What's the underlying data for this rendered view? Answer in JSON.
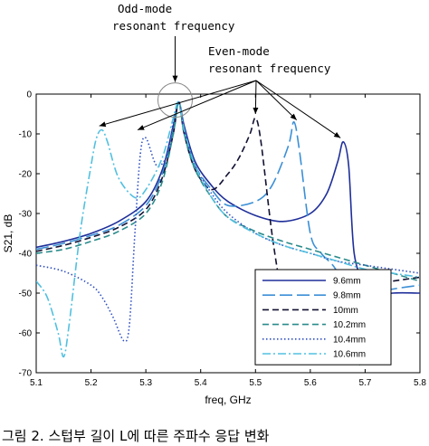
{
  "chart_data": {
    "type": "line",
    "xlabel": "freq, GHz",
    "ylabel": "S21, dB",
    "xlim": [
      5.1,
      5.8
    ],
    "ylim": [
      -70,
      0
    ],
    "xticks": [
      5.1,
      5.2,
      5.3,
      5.4,
      5.5,
      5.6,
      5.7,
      5.8
    ],
    "yticks": [
      0,
      -10,
      -20,
      -30,
      -40,
      -50,
      -60,
      -70
    ],
    "legend_position": "bottom-right",
    "grid": false,
    "series": [
      {
        "name": "9.6mm",
        "color": "#1f2f9a",
        "dash": "solid",
        "x": [
          5.1,
          5.15,
          5.2,
          5.25,
          5.3,
          5.33,
          5.35,
          5.36,
          5.37,
          5.39,
          5.42,
          5.45,
          5.5,
          5.55,
          5.6,
          5.63,
          5.65,
          5.66,
          5.67,
          5.68,
          5.7,
          5.72,
          5.75,
          5.8
        ],
        "y": [
          -38.5,
          -37,
          -35,
          -32,
          -27,
          -19,
          -8,
          -2,
          -8,
          -17,
          -23,
          -27,
          -30.5,
          -32,
          -30,
          -25,
          -17,
          -12,
          -18,
          -40,
          -48,
          -51,
          -50,
          -50
        ]
      },
      {
        "name": "9.8mm",
        "color": "#3b8fd6",
        "dash": "long",
        "x": [
          5.1,
          5.15,
          5.2,
          5.25,
          5.3,
          5.33,
          5.35,
          5.36,
          5.37,
          5.39,
          5.42,
          5.45,
          5.5,
          5.53,
          5.56,
          5.57,
          5.58,
          5.6,
          5.62,
          5.65,
          5.68,
          5.69,
          5.7,
          5.72,
          5.75,
          5.8
        ],
        "y": [
          -39,
          -37.5,
          -35.5,
          -33,
          -28,
          -20,
          -9,
          -2,
          -9,
          -18,
          -24,
          -28,
          -27,
          -23,
          -13,
          -7,
          -14,
          -35,
          -40,
          -45,
          -58,
          -68,
          -58,
          -50,
          -49,
          -48
        ]
      },
      {
        "name": "10mm",
        "color": "#111133",
        "dash": "dash",
        "x": [
          5.1,
          5.15,
          5.2,
          5.25,
          5.3,
          5.33,
          5.35,
          5.36,
          5.37,
          5.39,
          5.42,
          5.45,
          5.47,
          5.49,
          5.5,
          5.51,
          5.53,
          5.55,
          5.57,
          5.58,
          5.6,
          5.65,
          5.7,
          5.75,
          5.8
        ],
        "y": [
          -39.5,
          -38,
          -36,
          -33.5,
          -29,
          -21,
          -10,
          -2,
          -10,
          -19,
          -24,
          -20,
          -16,
          -10,
          -6,
          -12,
          -35,
          -52,
          -63,
          -67,
          -56,
          -49,
          -48,
          -47,
          -46
        ]
      },
      {
        "name": "10.2mm",
        "color": "#2a8a8a",
        "dash": "dash",
        "x": [
          5.1,
          5.15,
          5.2,
          5.25,
          5.3,
          5.33,
          5.35,
          5.36,
          5.37,
          5.39,
          5.42,
          5.45,
          5.5,
          5.55,
          5.6,
          5.65,
          5.7,
          5.75,
          5.8
        ],
        "y": [
          -40,
          -39,
          -37,
          -34.5,
          -30,
          -22,
          -10,
          -2,
          -10,
          -19,
          -26,
          -31,
          -34.5,
          -37,
          -39,
          -41,
          -43,
          -45,
          -47
        ]
      },
      {
        "name": "10.4mm",
        "color": "#2f4fbf",
        "dash": "dot",
        "x": [
          5.1,
          5.15,
          5.2,
          5.22,
          5.24,
          5.26,
          5.27,
          5.28,
          5.29,
          5.3,
          5.32,
          5.34,
          5.35,
          5.36,
          5.37,
          5.39,
          5.42,
          5.45,
          5.5,
          5.55,
          5.6,
          5.65,
          5.7,
          5.75,
          5.8
        ],
        "y": [
          -43,
          -44.5,
          -48,
          -51,
          -56,
          -62,
          -58,
          -35,
          -15,
          -11,
          -18,
          -15,
          -7,
          -2,
          -9,
          -18,
          -25,
          -30,
          -35,
          -38,
          -40,
          -42,
          -43,
          -44,
          -45
        ]
      },
      {
        "name": "10.6mm",
        "color": "#52c0e0",
        "dash": "dashdot",
        "x": [
          5.1,
          5.12,
          5.14,
          5.15,
          5.16,
          5.18,
          5.2,
          5.21,
          5.22,
          5.23,
          5.25,
          5.28,
          5.3,
          5.33,
          5.35,
          5.36,
          5.37,
          5.39,
          5.42,
          5.45,
          5.5,
          5.55,
          5.6,
          5.65,
          5.7,
          5.75,
          5.8
        ],
        "y": [
          -47,
          -51,
          -60,
          -66,
          -58,
          -35,
          -18,
          -11,
          -9,
          -12,
          -21,
          -26,
          -24,
          -16,
          -6,
          -2,
          -9,
          -18,
          -26,
          -31,
          -35,
          -38,
          -40,
          -42,
          -44,
          -45,
          -46
        ]
      }
    ],
    "annotations": [
      {
        "text_lines": [
          "Odd-mode",
          "resonant frequency"
        ]
      },
      {
        "text_lines": [
          "Even-mode",
          "resonant frequency"
        ]
      }
    ],
    "odd_mode_marker": {
      "x": 5.36,
      "y": -1.5
    },
    "even_mode_targets": [
      {
        "x": 5.215,
        "y": -8
      },
      {
        "x": 5.285,
        "y": -9
      },
      {
        "x": 5.5,
        "y": -5
      },
      {
        "x": 5.575,
        "y": -6.5
      },
      {
        "x": 5.655,
        "y": -11
      }
    ]
  },
  "caption": "그림 2. 스텁부 길이 L에 따른 주파수 응답 변화"
}
